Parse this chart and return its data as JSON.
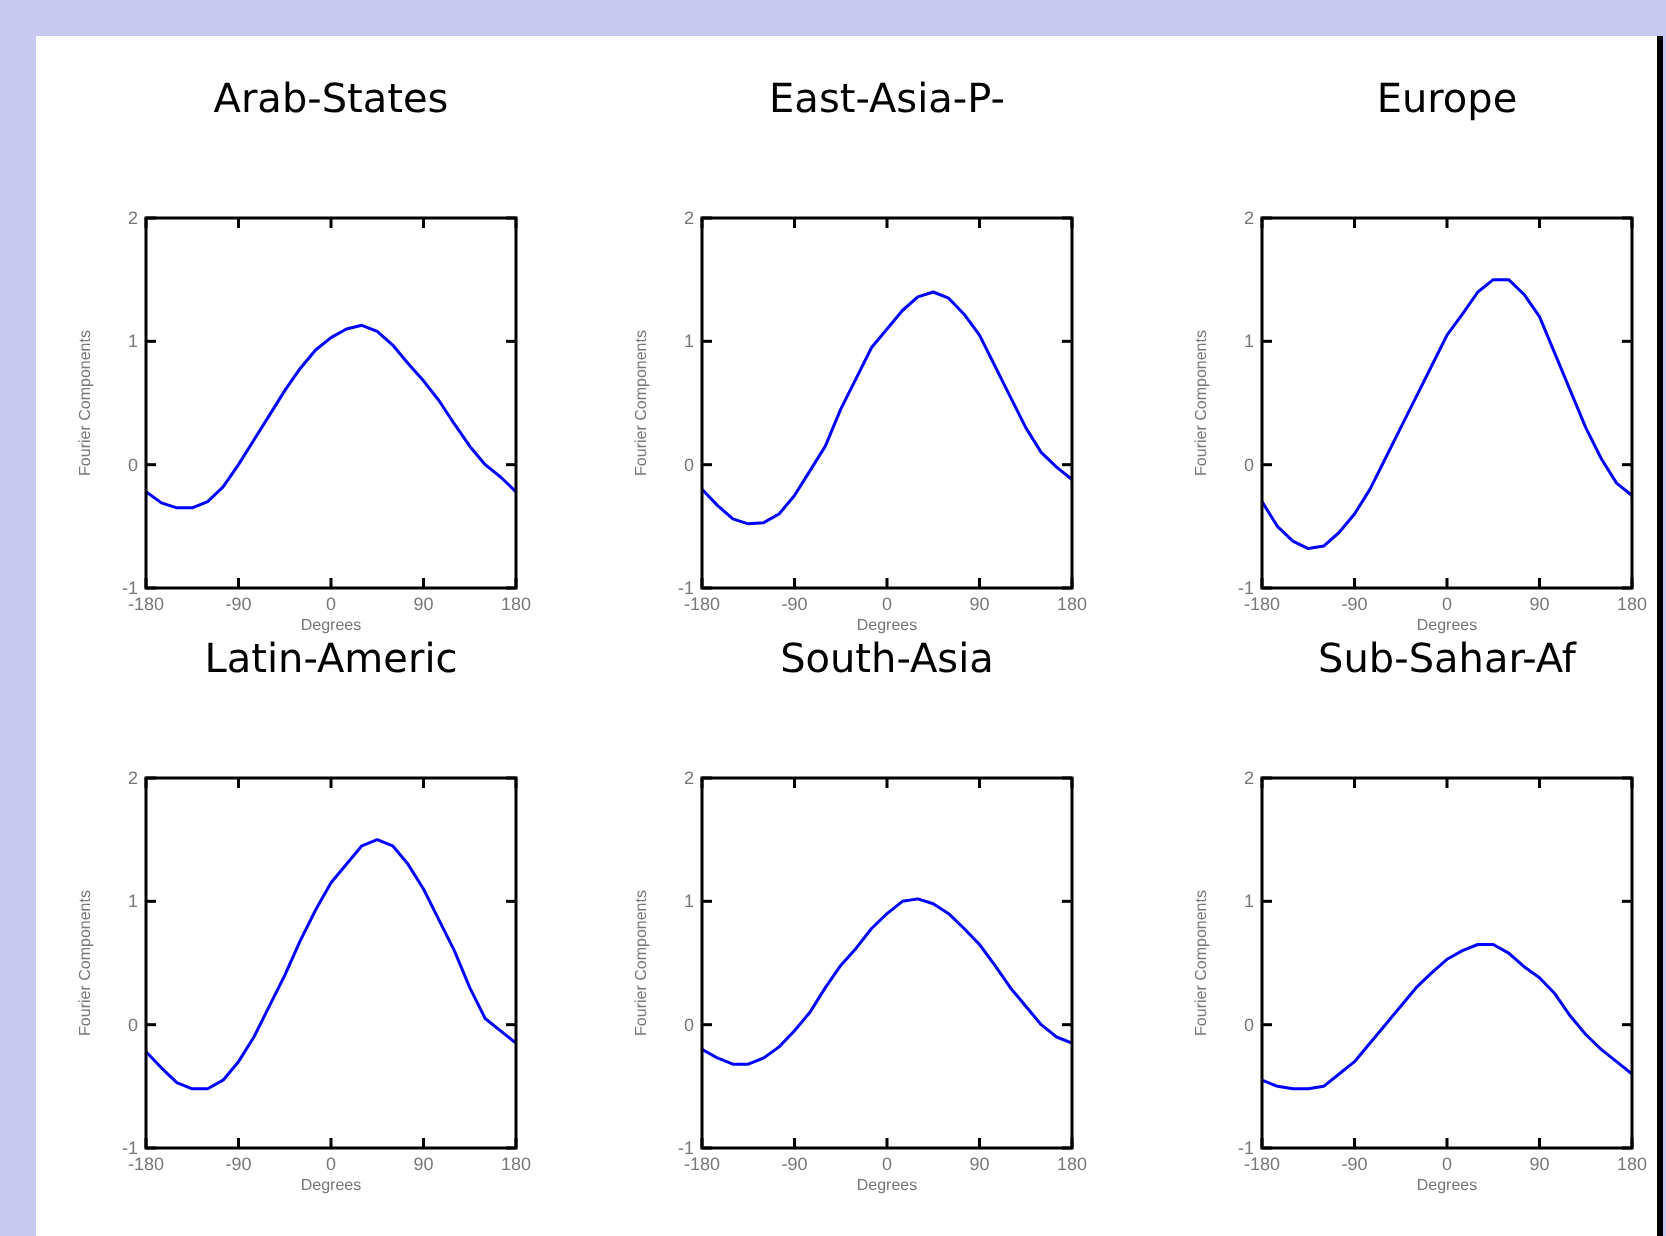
{
  "chart_data": [
    {
      "type": "line",
      "title": "Arab-States",
      "xlabel": "Degrees",
      "ylabel": "Fourier Components",
      "xlim": [
        -180,
        180
      ],
      "ylim": [
        -1,
        2
      ],
      "xticks": [
        -180,
        -90,
        0,
        90,
        180
      ],
      "yticks": [
        -1,
        0,
        1,
        2
      ],
      "x": [
        -180,
        -165,
        -150,
        -135,
        -120,
        -105,
        -90,
        -75,
        -60,
        -45,
        -30,
        -15,
        0,
        15,
        30,
        45,
        60,
        75,
        90,
        105,
        120,
        135,
        150,
        165,
        180
      ],
      "series": [
        {
          "color": "#0000ff",
          "values": [
            -0.22,
            -0.31,
            -0.35,
            -0.35,
            -0.3,
            -0.18,
            0.0,
            0.2,
            0.4,
            0.6,
            0.78,
            0.93,
            1.03,
            1.1,
            1.13,
            1.08,
            0.97,
            0.82,
            0.68,
            0.52,
            0.33,
            0.15,
            0.0,
            -0.1,
            -0.22
          ]
        }
      ]
    },
    {
      "type": "line",
      "title": "East-Asia-P-",
      "xlabel": "Degrees",
      "ylabel": "Fourier Components",
      "xlim": [
        -180,
        180
      ],
      "ylim": [
        -1,
        2
      ],
      "xticks": [
        -180,
        -90,
        0,
        90,
        180
      ],
      "yticks": [
        -1,
        0,
        1,
        2
      ],
      "x": [
        -180,
        -165,
        -150,
        -135,
        -120,
        -105,
        -90,
        -75,
        -60,
        -45,
        -30,
        -15,
        0,
        15,
        30,
        45,
        60,
        75,
        90,
        105,
        120,
        135,
        150,
        165,
        180
      ],
      "series": [
        {
          "color": "#0000ff",
          "values": [
            -0.2,
            -0.33,
            -0.44,
            -0.48,
            -0.47,
            -0.4,
            -0.25,
            -0.05,
            0.15,
            0.45,
            0.7,
            0.95,
            1.1,
            1.25,
            1.36,
            1.4,
            1.35,
            1.22,
            1.05,
            0.8,
            0.55,
            0.3,
            0.1,
            -0.02,
            -0.12
          ]
        }
      ]
    },
    {
      "type": "line",
      "title": "Europe",
      "xlabel": "Degrees",
      "ylabel": "Fourier Components",
      "xlim": [
        -180,
        180
      ],
      "ylim": [
        -1,
        2
      ],
      "xticks": [
        -180,
        -90,
        0,
        90,
        180
      ],
      "yticks": [
        -1,
        0,
        1,
        2
      ],
      "x": [
        -180,
        -165,
        -150,
        -135,
        -120,
        -105,
        -90,
        -75,
        -60,
        -45,
        -30,
        -15,
        0,
        15,
        30,
        45,
        60,
        75,
        90,
        105,
        120,
        135,
        150,
        165,
        180
      ],
      "series": [
        {
          "color": "#0000ff",
          "values": [
            -0.3,
            -0.5,
            -0.62,
            -0.68,
            -0.66,
            -0.55,
            -0.4,
            -0.2,
            0.05,
            0.3,
            0.55,
            0.8,
            1.05,
            1.22,
            1.4,
            1.5,
            1.5,
            1.38,
            1.2,
            0.9,
            0.6,
            0.3,
            0.05,
            -0.15,
            -0.25
          ]
        }
      ]
    },
    {
      "type": "line",
      "title": "Latin-Americ",
      "xlabel": "Degrees",
      "ylabel": "Fourier Components",
      "xlim": [
        -180,
        180
      ],
      "ylim": [
        -1,
        2
      ],
      "xticks": [
        -180,
        -90,
        0,
        90,
        180
      ],
      "yticks": [
        -1,
        0,
        1,
        2
      ],
      "x": [
        -180,
        -165,
        -150,
        -135,
        -120,
        -105,
        -90,
        -75,
        -60,
        -45,
        -30,
        -15,
        0,
        15,
        30,
        45,
        60,
        75,
        90,
        105,
        120,
        135,
        150,
        165,
        180
      ],
      "series": [
        {
          "color": "#0000ff",
          "values": [
            -0.22,
            -0.35,
            -0.47,
            -0.52,
            -0.52,
            -0.45,
            -0.3,
            -0.1,
            0.15,
            0.4,
            0.68,
            0.93,
            1.15,
            1.3,
            1.45,
            1.5,
            1.45,
            1.3,
            1.1,
            0.85,
            0.6,
            0.3,
            0.05,
            -0.05,
            -0.15
          ]
        }
      ]
    },
    {
      "type": "line",
      "title": "South-Asia",
      "xlabel": "Degrees",
      "ylabel": "Fourier Components",
      "xlim": [
        -180,
        180
      ],
      "ylim": [
        -1,
        2
      ],
      "xticks": [
        -180,
        -90,
        0,
        90,
        180
      ],
      "yticks": [
        -1,
        0,
        1,
        2
      ],
      "x": [
        -180,
        -165,
        -150,
        -135,
        -120,
        -105,
        -90,
        -75,
        -60,
        -45,
        -30,
        -15,
        0,
        15,
        30,
        45,
        60,
        75,
        90,
        105,
        120,
        135,
        150,
        165,
        180
      ],
      "series": [
        {
          "color": "#0000ff",
          "values": [
            -0.2,
            -0.27,
            -0.32,
            -0.32,
            -0.27,
            -0.18,
            -0.05,
            0.1,
            0.3,
            0.48,
            0.62,
            0.78,
            0.9,
            1.0,
            1.02,
            0.98,
            0.9,
            0.78,
            0.65,
            0.48,
            0.3,
            0.15,
            0.0,
            -0.1,
            -0.15
          ]
        }
      ]
    },
    {
      "type": "line",
      "title": "Sub-Sahar-Af",
      "xlabel": "Degrees",
      "ylabel": "Fourier Components",
      "xlim": [
        -180,
        180
      ],
      "ylim": [
        -1,
        2
      ],
      "xticks": [
        -180,
        -90,
        0,
        90,
        180
      ],
      "yticks": [
        -1,
        0,
        1,
        2
      ],
      "x": [
        -180,
        -165,
        -150,
        -135,
        -120,
        -105,
        -90,
        -75,
        -60,
        -45,
        -30,
        -15,
        0,
        15,
        30,
        45,
        60,
        75,
        90,
        105,
        120,
        135,
        150,
        165,
        180
      ],
      "series": [
        {
          "color": "#0000ff",
          "values": [
            -0.45,
            -0.5,
            -0.52,
            -0.52,
            -0.5,
            -0.4,
            -0.3,
            -0.15,
            0.0,
            0.15,
            0.3,
            0.42,
            0.53,
            0.6,
            0.65,
            0.65,
            0.58,
            0.47,
            0.38,
            0.25,
            0.07,
            -0.08,
            -0.2,
            -0.3,
            -0.4
          ]
        }
      ]
    }
  ]
}
